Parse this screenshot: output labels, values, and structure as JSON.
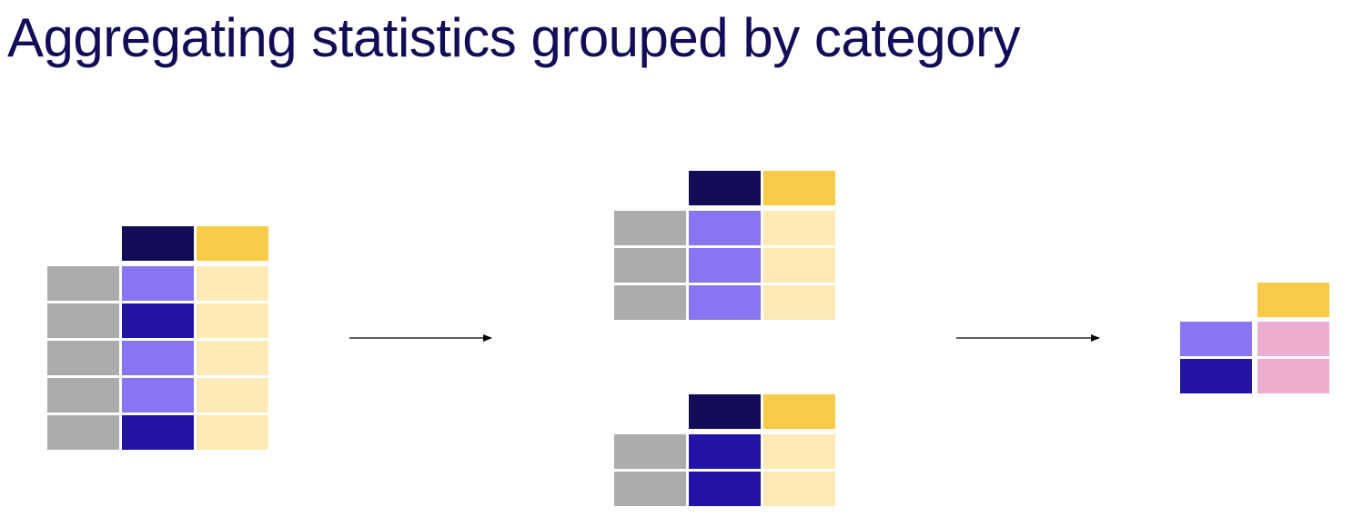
{
  "title": "Aggregating statistics grouped by category",
  "colors": {
    "title": "#130c57",
    "index_gray": "#adacaa",
    "header_navy": "#130c57",
    "header_yellow": "#f7cb47",
    "light_purple": "#8875f2",
    "dark_purple": "#2214a6",
    "pale_yellow": "#fdeab6",
    "pink": "#ecadd1",
    "arrow": "#000000"
  },
  "tables": [
    {
      "name": "input-table",
      "rows": [
        "light_purple",
        "dark_purple",
        "light_purple",
        "light_purple",
        "dark_purple"
      ]
    },
    {
      "name": "group-light-table",
      "rows": [
        "light_purple",
        "light_purple",
        "light_purple"
      ]
    },
    {
      "name": "group-dark-table",
      "rows": [
        "dark_purple",
        "dark_purple"
      ]
    },
    {
      "name": "aggregated-table",
      "rows": [
        "light_purple",
        "dark_purple"
      ]
    }
  ]
}
